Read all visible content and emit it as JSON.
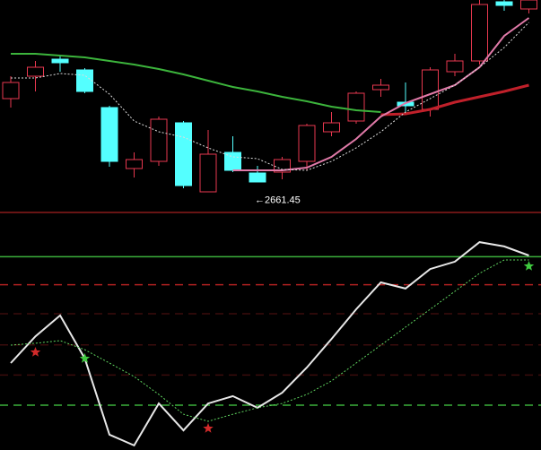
{
  "chart_data": [
    {
      "type": "candlestick",
      "categories": [
        null,
        null,
        null,
        null,
        null,
        null,
        null,
        null,
        null,
        null,
        null,
        null,
        null,
        null,
        null,
        null,
        null,
        null,
        null,
        null,
        null,
        null
      ],
      "open": [
        2755,
        2780,
        2799,
        2787,
        2745,
        2677,
        2685,
        2728,
        2651,
        2695,
        2672,
        2673,
        2685,
        2718,
        2730,
        2765,
        2751,
        2743,
        2785,
        2797,
        2863,
        2855
      ],
      "close": [
        2773,
        2790,
        2795,
        2763,
        2685,
        2687,
        2732,
        2658,
        2693,
        2675,
        2662,
        2687,
        2725,
        2728,
        2761,
        2770,
        2747,
        2787,
        2797,
        2860,
        2859,
        2865
      ],
      "high": [
        2780,
        2797,
        2803,
        2789,
        2747,
        2695,
        2735,
        2730,
        2720,
        2713,
        2680,
        2690,
        2727,
        2740,
        2763,
        2777,
        2773,
        2790,
        2805,
        2865,
        2865,
        2865
      ],
      "low": [
        2745,
        2763,
        2785,
        2761,
        2679,
        2667,
        2680,
        2655,
        2651,
        2673,
        2661.45,
        2665,
        2675,
        2713,
        2727,
        2757,
        2740,
        2735,
        2780,
        2793,
        2853,
        2850
      ],
      "low_labels": [
        null,
        null,
        null,
        null,
        null,
        null,
        null,
        null,
        null,
        null,
        "←2661.45",
        null,
        null,
        null,
        null,
        null,
        null,
        null,
        null,
        null,
        null,
        null
      ],
      "up_color": "#e8384f",
      "down_color": "#54ffff",
      "ylim": [
        2625,
        2865
      ],
      "series": [
        {
          "color": "#3cb43c",
          "style": "solid",
          "values": [
            2805,
            2805,
            2803,
            2801,
            2797,
            2793,
            2788,
            2782,
            2775,
            2768,
            2763,
            2757,
            2752,
            2746,
            2742,
            2740,
            null,
            null,
            null,
            null,
            null,
            null
          ]
        },
        {
          "color": "#c0202a",
          "style": "thick",
          "values": [
            null,
            null,
            null,
            null,
            null,
            null,
            null,
            null,
            null,
            null,
            null,
            null,
            null,
            null,
            null,
            2737,
            2738,
            2743,
            2751,
            2757,
            2763,
            2770
          ]
        },
        {
          "color": "#e07aa8",
          "style": "solid",
          "values": [
            null,
            null,
            null,
            null,
            null,
            null,
            null,
            null,
            null,
            2675,
            2675,
            2675,
            2678,
            2690,
            2710,
            2735,
            2750,
            2760,
            2770,
            2790,
            2825,
            2845
          ]
        },
        {
          "color": "#dddddd",
          "style": "dotted",
          "values": [
            2778,
            2778,
            2783,
            2781,
            2760,
            2730,
            2718,
            2712,
            2700,
            2690,
            2688,
            2676,
            2675,
            2685,
            2700,
            2718,
            2740,
            2755,
            2770,
            2790,
            2812,
            2840
          ]
        }
      ],
      "hlines": [
        {
          "value": 2628,
          "color": "#8b1a1a",
          "style": "solid"
        }
      ]
    },
    {
      "type": "line",
      "categories": [
        null,
        null,
        null,
        null,
        null,
        null,
        null,
        null,
        null,
        null,
        null,
        null,
        null,
        null,
        null,
        null,
        null,
        null,
        null,
        null,
        null,
        null
      ],
      "ylim": [
        0,
        100
      ],
      "series": [
        {
          "color": "#e8e8e8",
          "style": "solid",
          "values": [
            39.6,
            52,
            61.7,
            41.7,
            6.3,
            1.3,
            20.8,
            8.3,
            20.8,
            24.2,
            18.8,
            25.8,
            37.5,
            50.8,
            64.6,
            77.1,
            74.2,
            83.3,
            86.7,
            95.8,
            93.8,
            89.6
          ]
        },
        {
          "color": "#5fd35f",
          "style": "dotted",
          "values": [
            47.9,
            48.8,
            50,
            45.8,
            39.6,
            33.3,
            25,
            15.8,
            12.5,
            15.8,
            18.8,
            20.8,
            25,
            31.3,
            39.6,
            47.9,
            56.3,
            64.6,
            72.9,
            81.3,
            87.5,
            87.5
          ]
        },
        {
          "color": "#d02a2a",
          "style": "star",
          "values": [
            null,
            44.6,
            null,
            null,
            null,
            null,
            null,
            null,
            9.2,
            null,
            null,
            null,
            null,
            null,
            null,
            null,
            null,
            null,
            null,
            null,
            null,
            null
          ]
        },
        {
          "color": "#3fc93f",
          "style": "star",
          "values": [
            null,
            null,
            null,
            41.7,
            null,
            null,
            null,
            null,
            null,
            null,
            null,
            null,
            null,
            null,
            null,
            null,
            null,
            null,
            null,
            null,
            null,
            84.6
          ]
        }
      ],
      "hlines": [
        {
          "value": 89,
          "color": "#3bb03b",
          "style": "solid"
        },
        {
          "value": 76,
          "color": "#b02020",
          "style": "dashed"
        },
        {
          "value": 62.5,
          "color": "#3a0c0c",
          "style": "dashed"
        },
        {
          "value": 48,
          "color": "#3a0c0c",
          "style": "dashed"
        },
        {
          "value": 34,
          "color": "#3a0c0c",
          "style": "dashed"
        },
        {
          "value": 20,
          "color": "#3bb03b",
          "style": "dashed"
        }
      ]
    }
  ]
}
